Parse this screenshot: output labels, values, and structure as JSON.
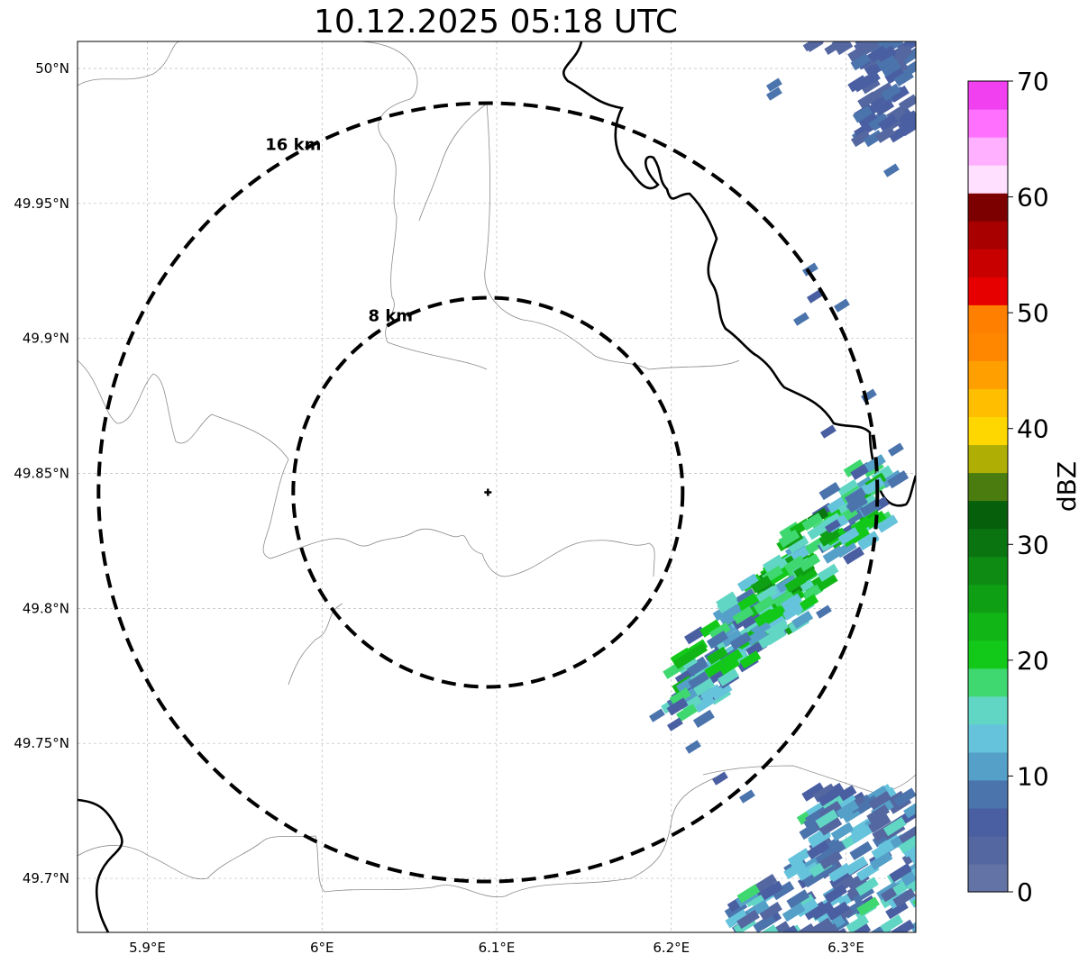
{
  "title": "10.12.2025 05:18 UTC",
  "map": {
    "lon_range": [
      5.86,
      6.34
    ],
    "lat_range": [
      49.68,
      50.01
    ],
    "center": {
      "lon": 6.095,
      "lat": 49.843
    },
    "x_ticks": [
      {
        "value": 5.9,
        "label": "5.9°E"
      },
      {
        "value": 6.0,
        "label": "6°E"
      },
      {
        "value": 6.1,
        "label": "6.1°E"
      },
      {
        "value": 6.2,
        "label": "6.2°E"
      },
      {
        "value": 6.3,
        "label": "6.3°E"
      }
    ],
    "y_ticks": [
      {
        "value": 50.0,
        "label": "50°N"
      },
      {
        "value": 49.95,
        "label": "49.95°N"
      },
      {
        "value": 49.9,
        "label": "49.9°N"
      },
      {
        "value": 49.85,
        "label": "49.85°N"
      },
      {
        "value": 49.8,
        "label": "49.8°N"
      },
      {
        "value": 49.75,
        "label": "49.75°N"
      },
      {
        "value": 49.7,
        "label": "49.7°N"
      }
    ],
    "rings": [
      {
        "radius_km": 8,
        "label": "8 km"
      },
      {
        "radius_km": 16,
        "label": "16 km"
      }
    ],
    "gridlines": true
  },
  "colorbar": {
    "label": "dBZ",
    "min": 0,
    "max": 70,
    "ticks": [
      {
        "value": 0,
        "label": "0"
      },
      {
        "value": 10,
        "label": "10"
      },
      {
        "value": 20,
        "label": "20"
      },
      {
        "value": 30,
        "label": "30"
      },
      {
        "value": 40,
        "label": "40"
      },
      {
        "value": 50,
        "label": "50"
      },
      {
        "value": 60,
        "label": "60"
      },
      {
        "value": 70,
        "label": "70"
      }
    ],
    "colors": [
      "#6473a6",
      "#5467a0",
      "#4a5fa2",
      "#4b74ad",
      "#55a0c8",
      "#66c3dc",
      "#62d6c4",
      "#3fd870",
      "#12c91a",
      "#11b516",
      "#0f9f14",
      "#0e8b12",
      "#0a7410",
      "#06600b",
      "#4a7c0f",
      "#aeae05",
      "#ffd700",
      "#ffbe00",
      "#ffa000",
      "#ff8700",
      "#ff7f00",
      "#e60000",
      "#c80000",
      "#a80000",
      "#7d0000",
      "#ffe0ff",
      "#ffb0ff",
      "#ff70ff",
      "#f040f0"
    ]
  }
}
